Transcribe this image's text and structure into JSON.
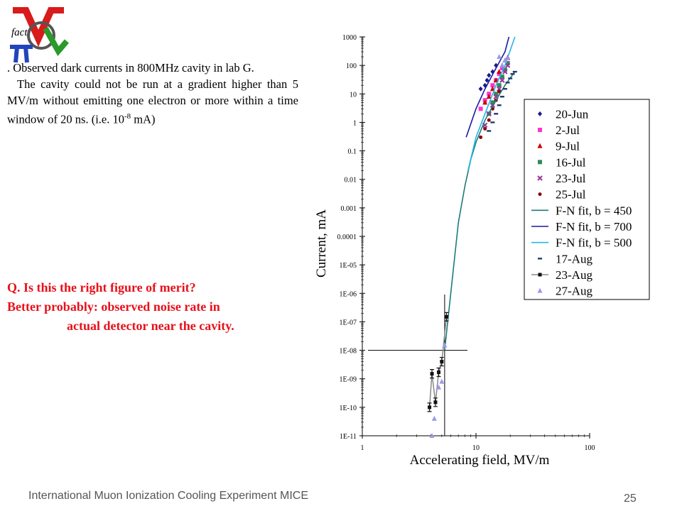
{
  "slide": {
    "intro_line": ". Observed dark currents in 800MHz  cavity in lab G.",
    "paragraph": "The cavity could not be run at a gradient higher than 5 MV/m without emitting one electron or more within a time window of 20 ns. (i.e. 10",
    "paragraph_sup": "-8",
    "paragraph_end": " mA)",
    "question_line1": "Q. Is this the right figure of merit?",
    "question_line2": "Better probably: observed noise rate in",
    "question_line3": "actual detector near the cavity.",
    "footer": "International Muon Ionization Cooling Experiment MICE",
    "page_number": "25",
    "logo_text": "fact",
    "colors": {
      "question": "#e8101a",
      "footer": "#555555"
    }
  },
  "chart_data": {
    "type": "scatter",
    "xlabel": "Accelerating field, MV/m",
    "ylabel": "Current, mA",
    "x_scale": "log",
    "y_scale": "log",
    "xlim": [
      1,
      100
    ],
    "ylim": [
      1e-11,
      1000
    ],
    "x_ticks": [
      "1",
      "10",
      "100"
    ],
    "y_ticks": [
      "1E-11",
      "1E-10",
      "1E-09",
      "1E-08",
      "1E-07",
      "1E-06",
      "1E-05",
      "0.0001",
      "0.001",
      "0.01",
      "0.1",
      "1",
      "10",
      "100",
      "1000"
    ],
    "legend_position": "right",
    "reference_lines": {
      "horizontal_y": 1e-08,
      "vertical_x": 5.3
    },
    "series": [
      {
        "name": "20-Jun",
        "marker": "diamond",
        "color": "#1a1a8c",
        "points": [
          [
            11,
            15
          ],
          [
            12,
            20
          ],
          [
            12.5,
            30
          ],
          [
            13,
            45
          ],
          [
            14,
            60
          ],
          [
            15,
            100
          ]
        ]
      },
      {
        "name": "2-Jul",
        "marker": "square",
        "color": "#ff33cc",
        "points": [
          [
            11,
            3
          ],
          [
            12,
            6
          ],
          [
            13,
            10
          ],
          [
            14,
            20
          ],
          [
            15,
            30
          ],
          [
            16,
            50
          ],
          [
            17,
            80
          ]
        ]
      },
      {
        "name": "9-Jul",
        "marker": "triangle",
        "color": "#cc0000",
        "points": [
          [
            12,
            5
          ],
          [
            13,
            8
          ],
          [
            14,
            15
          ],
          [
            15,
            30
          ],
          [
            16,
            60
          ],
          [
            17,
            100
          ],
          [
            18,
            150
          ],
          [
            19,
            190
          ]
        ]
      },
      {
        "name": "16-Jul",
        "marker": "square",
        "color": "#2e8b57",
        "points": [
          [
            13,
            2
          ],
          [
            14,
            5
          ],
          [
            15,
            10
          ],
          [
            16,
            20
          ],
          [
            17,
            40
          ],
          [
            18,
            70
          ],
          [
            19,
            120
          ]
        ]
      },
      {
        "name": "23-Jul",
        "marker": "x",
        "color": "#993399",
        "points": [
          [
            12,
            0.8
          ],
          [
            13,
            2
          ],
          [
            14,
            4
          ],
          [
            15,
            8
          ],
          [
            16,
            15
          ],
          [
            17,
            30
          ],
          [
            18,
            60
          ],
          [
            19,
            100
          ]
        ]
      },
      {
        "name": "25-Jul",
        "marker": "dot",
        "color": "#8b0000",
        "points": [
          [
            11,
            0.3
          ],
          [
            12,
            0.6
          ],
          [
            13,
            1.2
          ],
          [
            14,
            3
          ],
          [
            15,
            6
          ],
          [
            16,
            12
          ]
        ]
      },
      {
        "name": "F-N fit, b = 450",
        "marker": "line",
        "color": "#1f7a7a",
        "points": [
          [
            5.3,
            1e-08
          ],
          [
            6,
            1e-06
          ],
          [
            7,
            0.0003
          ],
          [
            8,
            0.006
          ],
          [
            9,
            0.05
          ],
          [
            10,
            0.2
          ],
          [
            12,
            1.2
          ],
          [
            15,
            6
          ],
          [
            18,
            20
          ],
          [
            22,
            60
          ]
        ]
      },
      {
        "name": "F-N fit, b = 700",
        "marker": "line",
        "color": "#1a1aa0",
        "points": [
          [
            8.2,
            0.3
          ],
          [
            10,
            3
          ],
          [
            12,
            15
          ],
          [
            15,
            80
          ],
          [
            18,
            300
          ],
          [
            19.5,
            1000
          ]
        ]
      },
      {
        "name": "F-N fit, b = 500",
        "marker": "line",
        "color": "#22b8e8",
        "points": [
          [
            8.5,
            0.02
          ],
          [
            10,
            0.3
          ],
          [
            12,
            2
          ],
          [
            15,
            20
          ],
          [
            18,
            100
          ],
          [
            22,
            1000
          ]
        ]
      },
      {
        "name": "17-Aug",
        "marker": "dash",
        "color": "#1f3a6e",
        "points": [
          [
            13,
            0.5
          ],
          [
            14,
            1
          ],
          [
            15,
            2
          ],
          [
            16,
            4
          ],
          [
            17,
            8
          ],
          [
            18,
            15
          ],
          [
            19,
            25
          ],
          [
            20,
            35
          ],
          [
            21,
            50
          ],
          [
            22,
            60
          ]
        ]
      },
      {
        "name": "23-Aug",
        "marker": "errorbar",
        "color": "#111111",
        "connect_color": "#888888",
        "points": [
          [
            3.9,
            1e-10
          ],
          [
            4.1,
            1.5e-09
          ],
          [
            4.4,
            1.5e-10
          ],
          [
            4.7,
            1.7e-09
          ],
          [
            5.0,
            4e-09
          ],
          [
            5.5,
            1.5e-07
          ]
        ]
      },
      {
        "name": "27-Aug",
        "marker": "triangle",
        "color": "#9999ee",
        "points": [
          [
            4.1,
            1e-11
          ],
          [
            4.3,
            4e-11
          ],
          [
            4.7,
            5e-10
          ],
          [
            5.0,
            8e-10
          ],
          [
            5.3,
            1.5e-08
          ],
          [
            16,
            200
          ],
          [
            17,
            100
          ],
          [
            18,
            150
          ],
          [
            19,
            180
          ]
        ]
      }
    ]
  }
}
